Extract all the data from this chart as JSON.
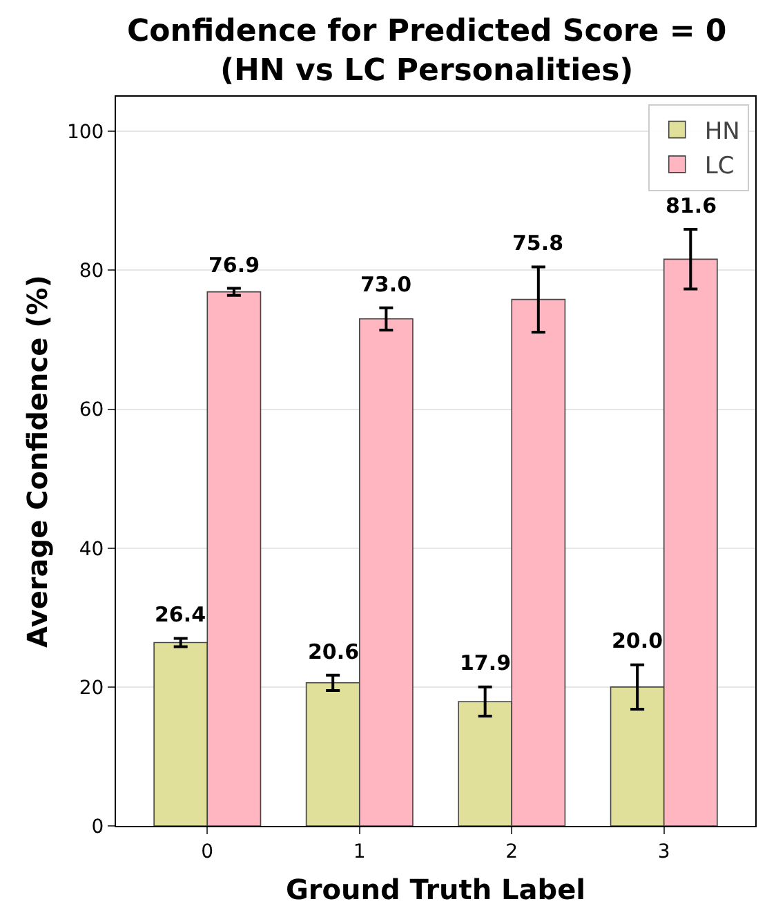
{
  "chart_data": {
    "type": "bar",
    "title": "Confidence for Predicted Score = 0\n(HN vs LC Personalities)",
    "xlabel": "Ground Truth Label",
    "ylabel": "Average Confidence (%)",
    "categories": [
      "0",
      "1",
      "2",
      "3"
    ],
    "series": [
      {
        "name": "HN",
        "color": "#e0e09a",
        "values": [
          26.4,
          20.6,
          17.9,
          20.0
        ],
        "errors": [
          0.6,
          1.1,
          2.1,
          3.2
        ],
        "value_labels": [
          "26.4",
          "20.6",
          "17.9",
          "20.0"
        ]
      },
      {
        "name": "LC",
        "color": "#ffb6c1",
        "values": [
          76.9,
          73.0,
          75.8,
          81.6
        ],
        "errors": [
          0.5,
          1.6,
          4.7,
          4.3
        ],
        "value_labels": [
          "76.9",
          "73.0",
          "75.8",
          "81.6"
        ]
      }
    ],
    "ylim": [
      0,
      105
    ],
    "yticks": [
      0,
      20,
      40,
      60,
      80,
      100
    ],
    "grid": "y",
    "legend": "top right"
  }
}
